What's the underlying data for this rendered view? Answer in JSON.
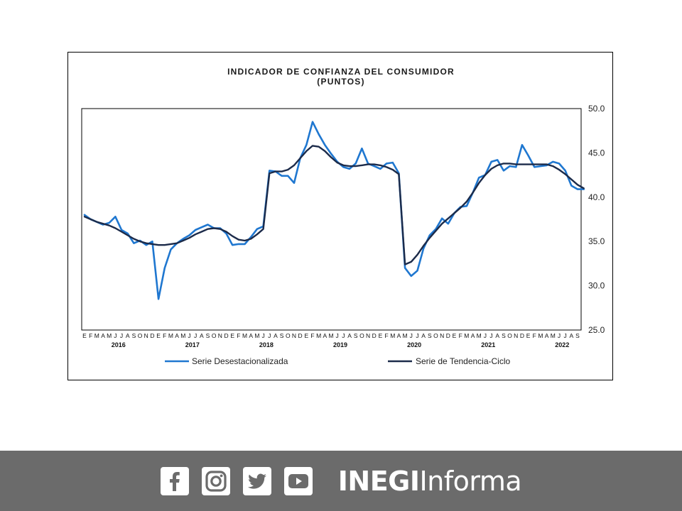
{
  "chart_data": {
    "type": "line",
    "title": "INDICADOR DE CONFIANZA  DEL CONSUMIDOR",
    "subtitle": "(PUNTOS)",
    "ylim": [
      25.0,
      50.0
    ],
    "yticks": [
      "50.0",
      "45.0",
      "40.0",
      "35.0",
      "30.0",
      "25.0"
    ],
    "y_axis_position": "right",
    "month_labels": [
      "E",
      "F",
      "M",
      "A",
      "M",
      "J",
      "J",
      "A",
      "S",
      "O",
      "N",
      "D",
      "E",
      "F",
      "M",
      "A",
      "M",
      "J",
      "J",
      "A",
      "S",
      "O",
      "N",
      "D",
      "E",
      "F",
      "M",
      "A",
      "M",
      "J",
      "J",
      "A",
      "S",
      "O",
      "N",
      "D",
      "E",
      "F",
      "M",
      "A",
      "M",
      "J",
      "J",
      "A",
      "S",
      "O",
      "N",
      "D",
      "E",
      "F",
      "M",
      "A",
      "M",
      "J",
      "J",
      "A",
      "S",
      "O",
      "N",
      "D",
      "E",
      "F",
      "M",
      "A",
      "M",
      "J",
      "J",
      "A",
      "S",
      "O",
      "N",
      "D",
      "E",
      "F",
      "M",
      "A",
      "M",
      "J",
      "J",
      "A",
      "S"
    ],
    "year_labels": [
      "2016",
      "2017",
      "2018",
      "2019",
      "2020",
      "2021",
      "2022"
    ],
    "legend_position": "bottom",
    "series": [
      {
        "name": "Serie Desestacionalizada",
        "color": "#1f77d0",
        "values": [
          38.0,
          37.5,
          37.2,
          36.9,
          37.1,
          37.8,
          36.3,
          35.9,
          34.8,
          35.1,
          34.6,
          35.0,
          28.5,
          32.0,
          34.1,
          34.8,
          35.3,
          35.7,
          36.3,
          36.6,
          36.9,
          36.5,
          36.5,
          35.9,
          34.6,
          34.7,
          34.7,
          35.5,
          36.4,
          36.7,
          43.0,
          42.9,
          42.4,
          42.4,
          41.6,
          44.4,
          45.9,
          48.5,
          47.1,
          45.9,
          44.9,
          44.0,
          43.4,
          43.2,
          43.8,
          45.5,
          43.8,
          43.5,
          43.2,
          43.8,
          43.9,
          42.7,
          32.0,
          31.1,
          31.7,
          34.2,
          35.7,
          36.4,
          37.6,
          37.0,
          38.2,
          38.9,
          39.0,
          40.5,
          42.2,
          42.5,
          44.0,
          44.2,
          43.0,
          43.5,
          43.4,
          45.9,
          44.7,
          43.4,
          43.5,
          43.6,
          44.0,
          43.8,
          43.0,
          41.3,
          40.9,
          40.9
        ]
      },
      {
        "name": "Serie de Tendencia-Ciclo",
        "color": "#1c2b4a",
        "values": [
          37.8,
          37.5,
          37.2,
          37.0,
          36.8,
          36.5,
          36.1,
          35.7,
          35.3,
          35.0,
          34.8,
          34.7,
          34.6,
          34.6,
          34.7,
          34.8,
          35.1,
          35.4,
          35.8,
          36.1,
          36.4,
          36.5,
          36.4,
          36.1,
          35.6,
          35.2,
          35.1,
          35.3,
          35.8,
          36.4,
          42.7,
          42.9,
          42.9,
          43.1,
          43.6,
          44.4,
          45.2,
          45.8,
          45.7,
          45.2,
          44.5,
          43.9,
          43.6,
          43.5,
          43.5,
          43.6,
          43.7,
          43.7,
          43.6,
          43.4,
          43.1,
          42.6,
          32.4,
          32.7,
          33.5,
          34.5,
          35.4,
          36.2,
          37.0,
          37.6,
          38.2,
          38.8,
          39.5,
          40.5,
          41.6,
          42.5,
          43.2,
          43.6,
          43.8,
          43.8,
          43.7,
          43.7,
          43.7,
          43.7,
          43.7,
          43.7,
          43.5,
          43.1,
          42.6,
          42.0,
          41.4,
          41.0
        ]
      }
    ]
  },
  "footer": {
    "brand_bold": "INEGI",
    "brand_light": "Informa",
    "icons": [
      "facebook-icon",
      "instagram-icon",
      "twitter-icon",
      "youtube-icon"
    ]
  }
}
